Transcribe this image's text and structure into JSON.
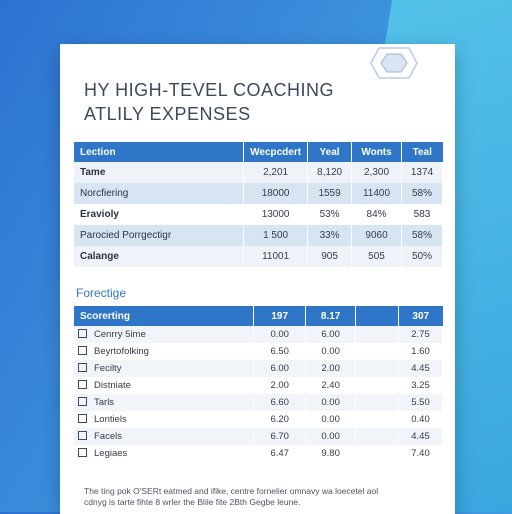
{
  "title_line1": "HY HIGH-TEVEL COACHING",
  "title_line2": "ATLILY EXPENSES",
  "table1": {
    "headers": [
      "Lection",
      "Wecpcdert",
      "Yeal",
      "Wonts",
      "Teal"
    ],
    "rows": [
      [
        "Tame",
        "2,201",
        "8,120",
        "2,300",
        "1374"
      ],
      [
        "Norcfiering",
        "18000",
        "1559",
        "11400",
        "58%"
      ],
      [
        "Eravioly",
        "13000",
        "53%",
        "84%",
        "583"
      ],
      [
        "Parocied Porrgectigr",
        "1 500",
        "33%",
        "9060",
        "58%"
      ],
      [
        "Calange",
        "11001",
        "905",
        "505",
        "50%"
      ]
    ]
  },
  "section_label": "Forectige",
  "table2": {
    "headers": [
      "Scorerting",
      "197",
      "8.17",
      "",
      "307"
    ],
    "rows": [
      [
        "Cenrry 5ime",
        "0.00",
        "6.00",
        "",
        "2.75"
      ],
      [
        "Beyrtofolking",
        "6.50",
        "0.00",
        "",
        "1.60"
      ],
      [
        "Fecilty",
        "6.00",
        "2.00",
        "",
        "4.45"
      ],
      [
        "Distniate",
        "2.00",
        "2.40",
        "",
        "3.25"
      ],
      [
        "Tarls",
        "6.60",
        "0.00",
        "",
        "5.50"
      ],
      [
        "Lontiels",
        "6.20",
        "0.00",
        "",
        "0.40"
      ],
      [
        "Facels",
        "6.70",
        "0.00",
        "",
        "4.45"
      ],
      [
        "Legiaes",
        "6.47",
        "9.80",
        "",
        "7.40"
      ]
    ]
  },
  "footer_line1": "The ting pok O'SERt eatmed and ifike, centre fornelier omnavy wa loecetel aol",
  "footer_line2": "cdnyg is tarte fihte 8 wrler the Blile fite 2Bth Gegbe leune."
}
